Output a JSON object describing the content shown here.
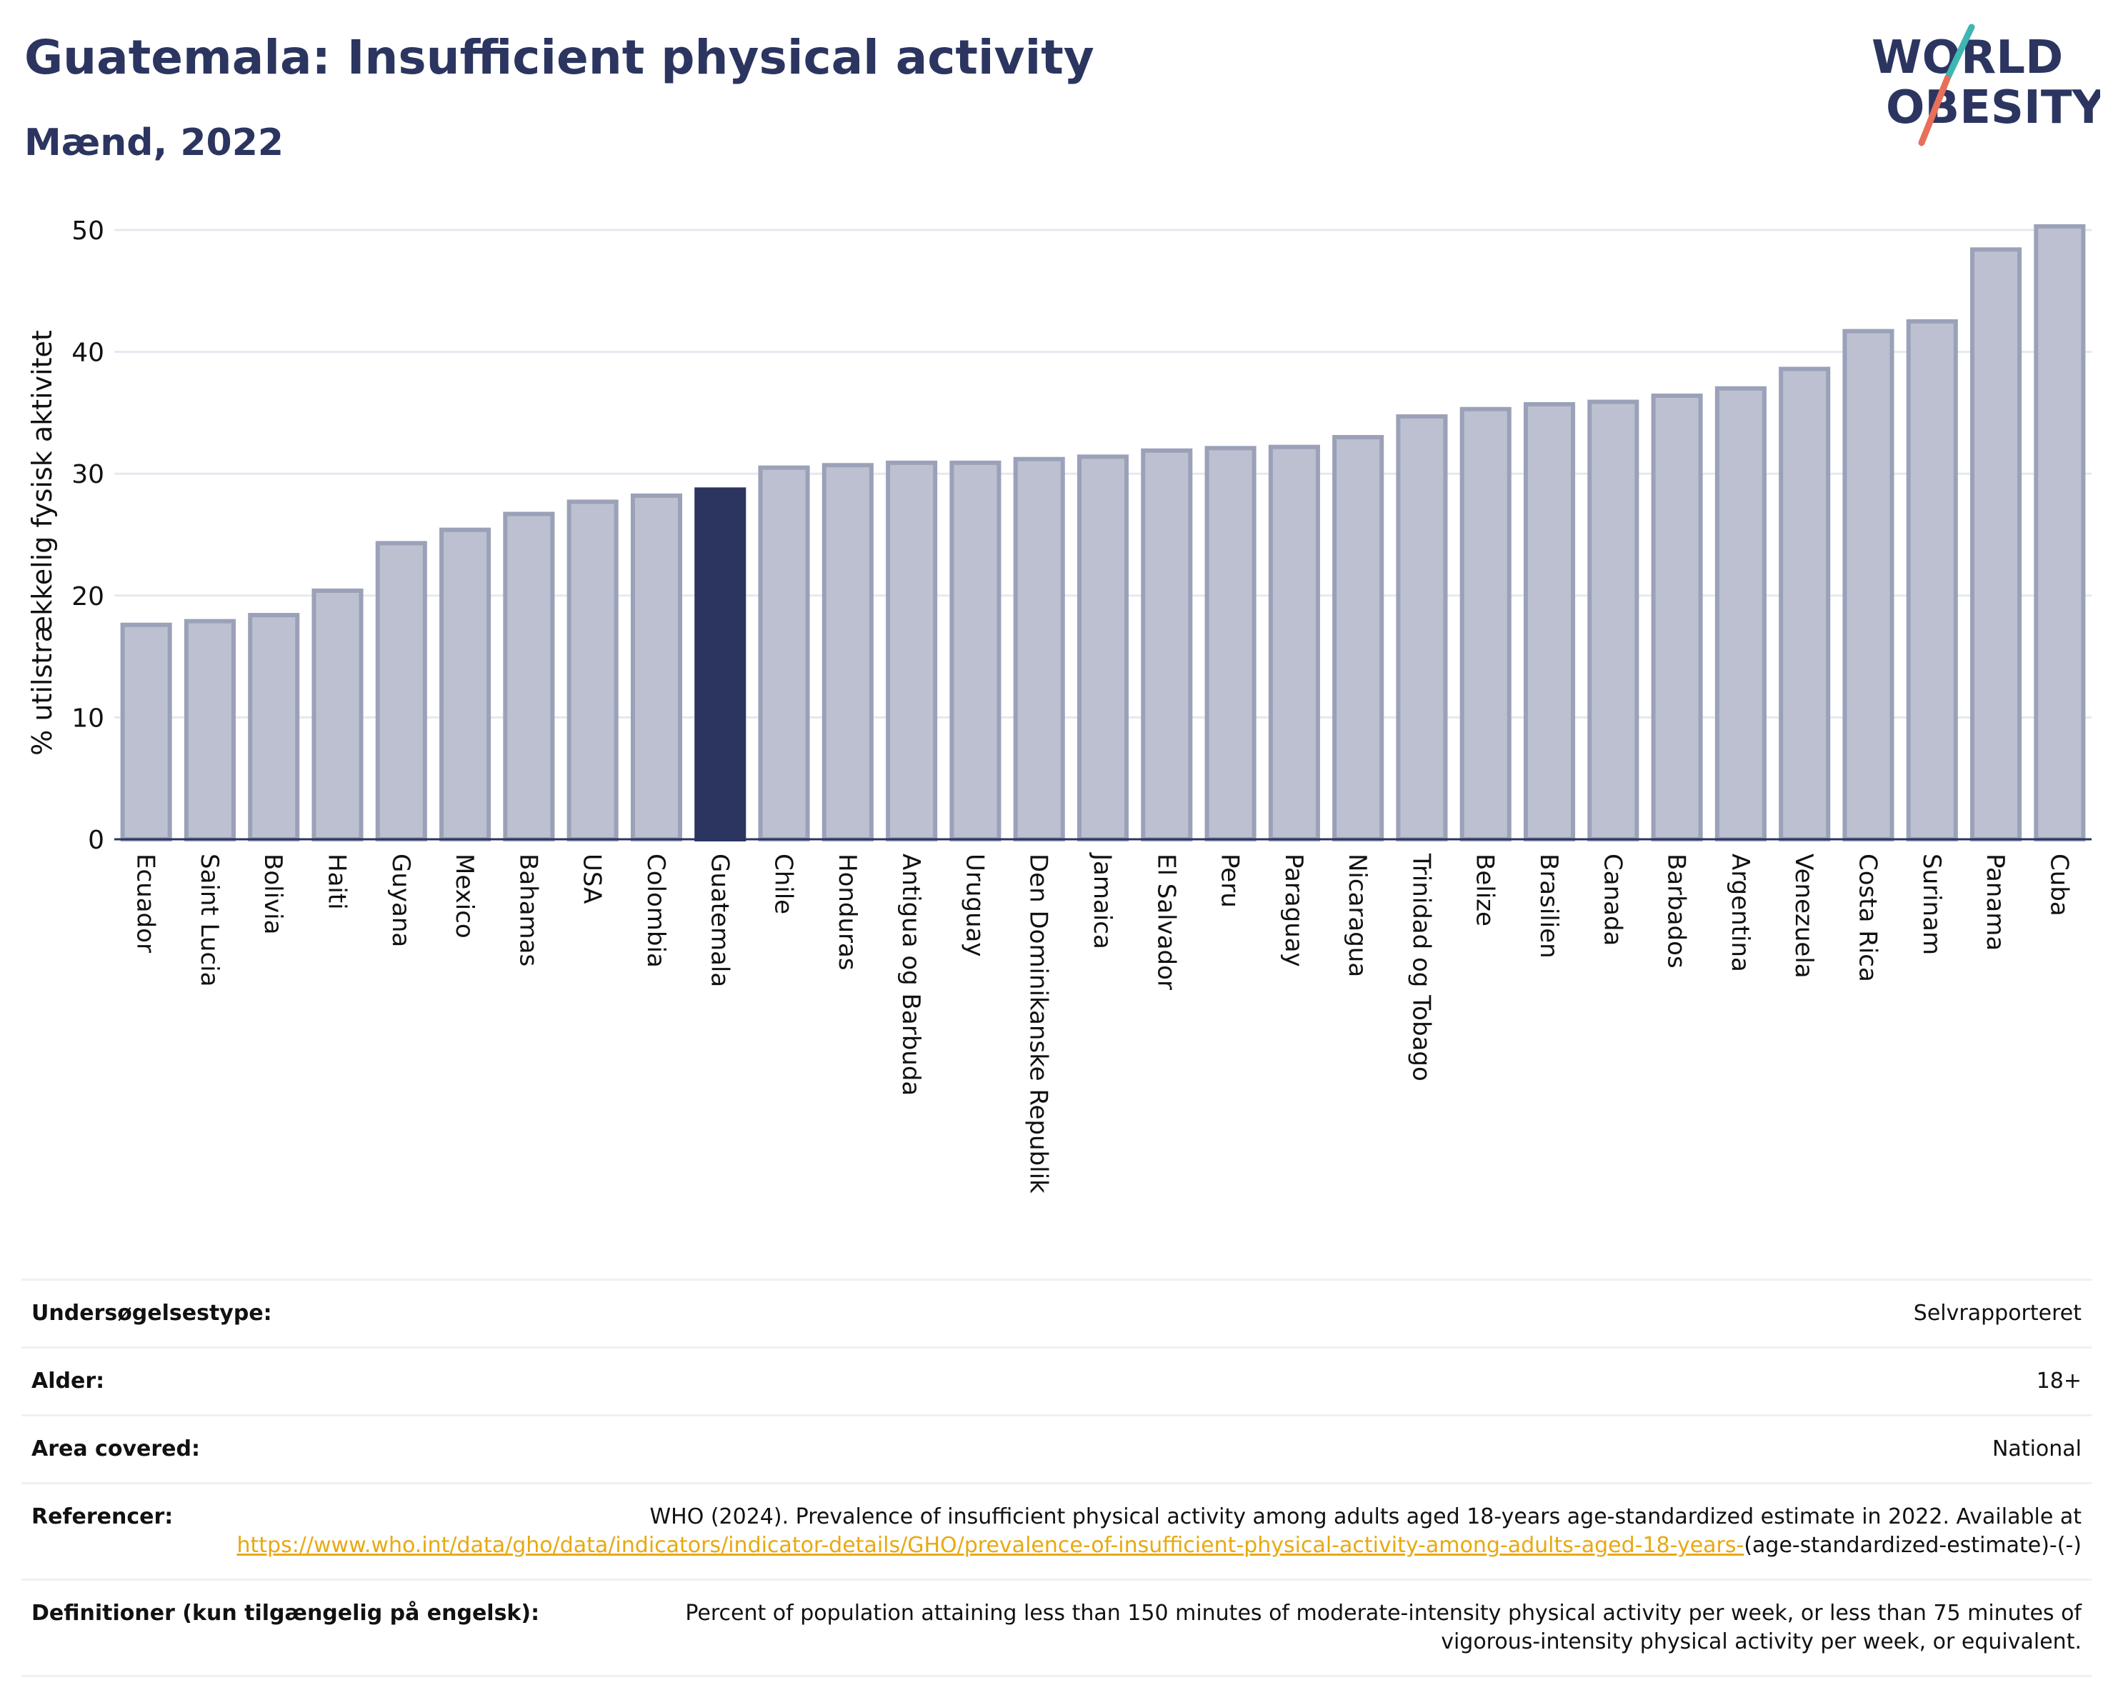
{
  "header": {
    "title": "Guatemala: Insufficient physical activity",
    "subtitle": "Mænd, 2022"
  },
  "logo": {
    "line1": "WORLD",
    "line2": "OBESITY"
  },
  "colors": {
    "bar": "#bcc0d0",
    "bar_stroke": "#9aa1b8",
    "highlight": "#2b3560",
    "title": "#2b3560",
    "link": "#e8a910"
  },
  "chart_data": {
    "type": "bar",
    "ylabel": "% utilstrækkelig fysisk aktivitet",
    "ylim": [
      0,
      50
    ],
    "yticks": [
      0,
      10,
      20,
      30,
      40,
      50
    ],
    "grid": true,
    "highlight": "Guatemala",
    "categories": [
      "Ecuador",
      "Saint Lucia",
      "Bolivia",
      "Haiti",
      "Guyana",
      "Mexico",
      "Bahamas",
      "USA",
      "Colombia",
      "Guatemala",
      "Chile",
      "Honduras",
      "Antigua og Barbuda",
      "Uruguay",
      "Den Dominikanske Republik",
      "Jamaica",
      "El Salvador",
      "Peru",
      "Paraguay",
      "Nicaragua",
      "Trinidad og Tobago",
      "Belize",
      "Brasilien",
      "Canada",
      "Barbados",
      "Argentina",
      "Venezuela",
      "Costa Rica",
      "Surinam",
      "Panama",
      "Cuba"
    ],
    "values": [
      17.6,
      17.9,
      18.4,
      20.4,
      24.3,
      25.4,
      26.7,
      27.7,
      28.2,
      28.7,
      30.5,
      30.7,
      30.9,
      30.9,
      31.2,
      31.4,
      31.9,
      32.1,
      32.2,
      33.0,
      34.7,
      35.3,
      35.7,
      35.9,
      36.4,
      37.0,
      38.6,
      41.7,
      42.5,
      48.4,
      50.3
    ]
  },
  "info": {
    "survey_label": "Undersøgelsestype:",
    "survey_value": "Selvrapporteret",
    "age_label": "Alder:",
    "age_value": "18+",
    "area_label": "Area covered:",
    "area_value": "National",
    "ref_label": "Referencer:",
    "ref_text": "WHO (2024). Prevalence of insufficient physical activity among adults aged 18-years age-standardized estimate in 2022. Available at",
    "ref_link": "https://www.who.int/data/gho/data/indicators/indicator-details/GHO/prevalence-of-insufficient-physical-activity-among-adults-aged-18-years-",
    "ref_tail": "(age-standardized-estimate)-(-)",
    "def_label": "Definitioner (kun tilgængelig på engelsk):",
    "def_value": "Percent of population attaining less than 150 minutes of moderate-intensity physical activity per week, or less than 75 minutes of vigorous-intensity physical activity per week, or equivalent."
  }
}
